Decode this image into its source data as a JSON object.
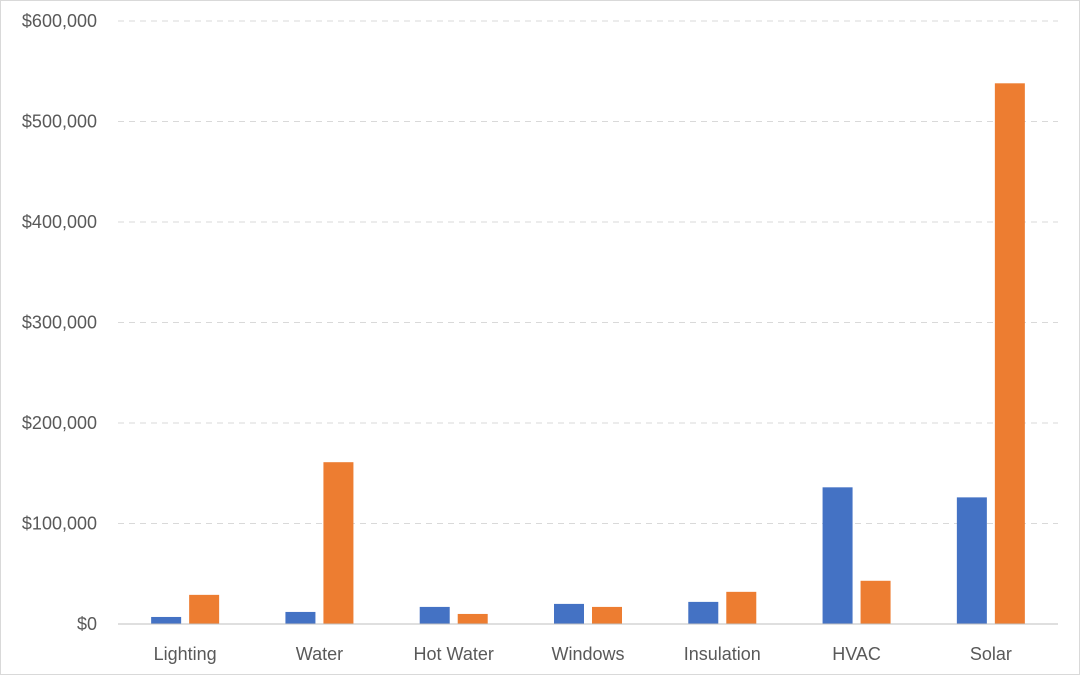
{
  "chart_data": {
    "type": "bar",
    "title": "",
    "xlabel": "",
    "ylabel": "",
    "categories": [
      "Lighting",
      "Water",
      "Hot Water",
      "Windows",
      "Insulation",
      "HVAC",
      "Solar"
    ],
    "series": [
      {
        "color": "#4472C4",
        "values": [
          7000,
          12000,
          17000,
          20000,
          22000,
          136000,
          126000
        ]
      },
      {
        "color": "#ED7D31",
        "values": [
          29000,
          161000,
          10000,
          17000,
          32000,
          43000,
          538000
        ]
      }
    ],
    "ylim": [
      0,
      600000
    ],
    "yticks": [
      0,
      100000,
      200000,
      300000,
      400000,
      500000,
      600000
    ],
    "ytick_labels": [
      "$0",
      "$100,000",
      "$200,000",
      "$300,000",
      "$400,000",
      "$500,000",
      "$600,000"
    ],
    "grid": true,
    "gridline_color": "#D9D9D9",
    "legend": "none"
  }
}
